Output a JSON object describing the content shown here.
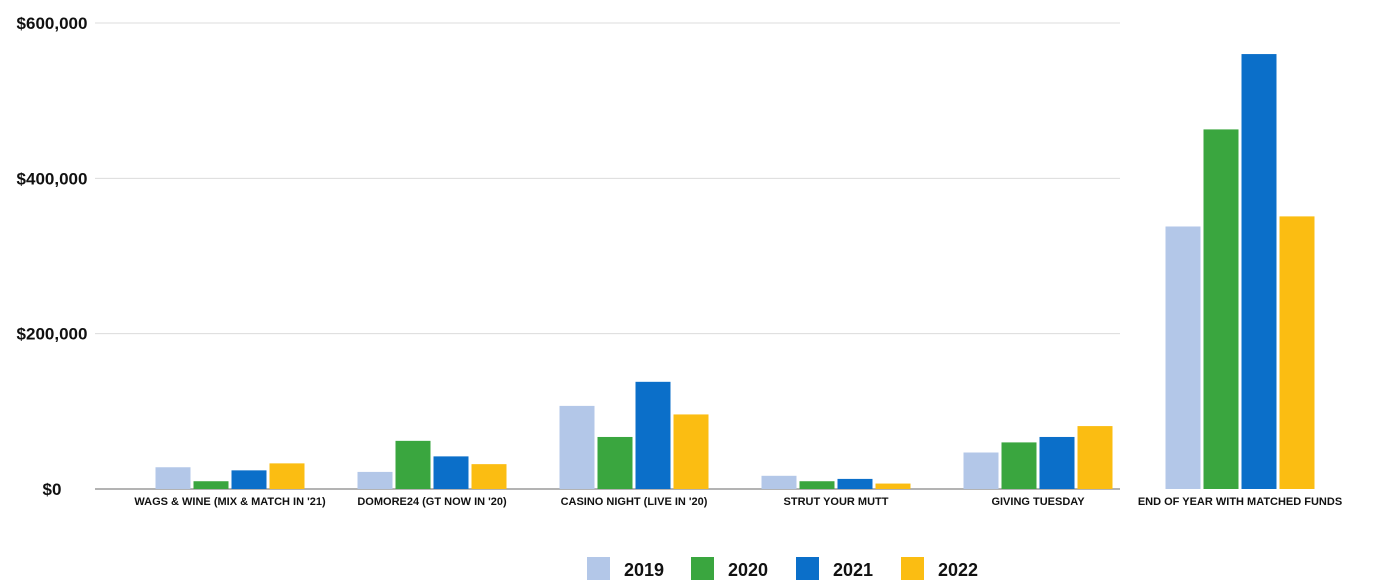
{
  "chart_data": {
    "type": "bar",
    "title": "",
    "xlabel": "",
    "ylabel": "",
    "ylim": [
      0,
      600000
    ],
    "y_ticks": [
      {
        "value": 0,
        "label": "$0"
      },
      {
        "value": 200000,
        "label": "$200,000"
      },
      {
        "value": 400000,
        "label": "$400,000"
      },
      {
        "value": 600000,
        "label": "$600,000"
      }
    ],
    "grid": true,
    "legend_position": "bottom",
    "categories": [
      "WAGS & WINE (MIX & MATCH IN '21)",
      "DOMORE24 (GT NOW IN '20)",
      "CASINO NIGHT (LIVE IN '20)",
      "STRUT YOUR MUTT",
      "GIVING TUESDAY",
      "END OF YEAR WITH MATCHED FUNDS"
    ],
    "series": [
      {
        "name": "2019",
        "color": "#b3c7e8",
        "values": [
          28000,
          22000,
          107000,
          17000,
          47000,
          338000
        ]
      },
      {
        "name": "2020",
        "color": "#3aa63f",
        "values": [
          10000,
          62000,
          67000,
          10000,
          60000,
          463000
        ]
      },
      {
        "name": "2021",
        "color": "#0b6fc9",
        "values": [
          24000,
          42000,
          138000,
          13000,
          67000,
          560000
        ]
      },
      {
        "name": "2022",
        "color": "#fbbd12",
        "values": [
          33000,
          32000,
          96000,
          7000,
          81000,
          351000
        ]
      }
    ]
  }
}
